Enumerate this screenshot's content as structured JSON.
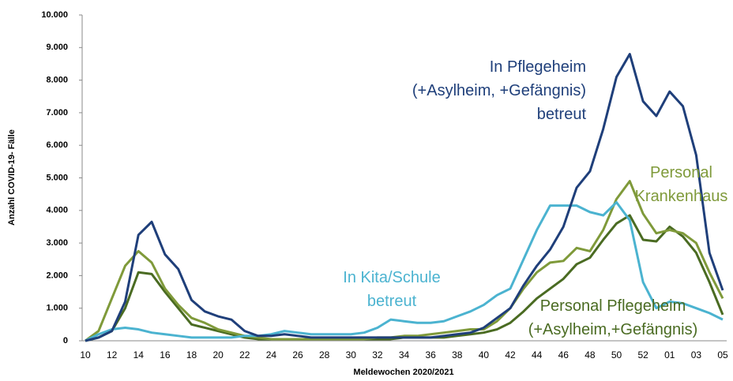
{
  "chart_data": {
    "type": "line",
    "x_label": "Meldewochen 2020/2021",
    "y_label": "Anzahl COVID-19- Fälle",
    "categories": [
      "10",
      null,
      "12",
      null,
      "14",
      null,
      "16",
      null,
      "18",
      null,
      "20",
      null,
      "22",
      null,
      "24",
      null,
      "26",
      null,
      "28",
      null,
      "30",
      null,
      "32",
      null,
      "34",
      null,
      "36",
      null,
      "38",
      null,
      "40",
      null,
      "42",
      null,
      "44",
      null,
      "46",
      null,
      "48",
      null,
      "50",
      null,
      "52",
      null,
      "01",
      null,
      "03",
      null,
      "05"
    ],
    "ylim": [
      0,
      10000
    ],
    "yticks": [
      0,
      {
        "value": 1000,
        "label": "1.000"
      },
      {
        "value": 2000,
        "label": "2.000"
      },
      {
        "value": 3000,
        "label": "3.000"
      },
      {
        "value": 4000,
        "label": "4.000"
      },
      {
        "value": 5000,
        "label": "5.000"
      },
      {
        "value": 6000,
        "label": "6.000"
      },
      {
        "value": 7000,
        "label": "7.000"
      },
      {
        "value": 8000,
        "label": "8.000"
      },
      {
        "value": 9000,
        "label": "9.000"
      },
      {
        "value": 10000,
        "label": "10.000"
      }
    ],
    "grid": false,
    "series": [
      {
        "name": "In Pflegeheim\n(+Asylheim, +Gefängnis)\nbetreut",
        "color": "#1f3f7a",
        "values": [
          0,
          100,
          300,
          1200,
          3250,
          3650,
          2650,
          2200,
          1250,
          900,
          750,
          650,
          300,
          150,
          150,
          200,
          150,
          100,
          100,
          100,
          100,
          100,
          100,
          100,
          100,
          100,
          100,
          150,
          200,
          250,
          400,
          700,
          1000,
          1700,
          2300,
          2800,
          3500,
          4700,
          5200,
          6500,
          8100,
          8800,
          7350,
          6900,
          7650,
          7200,
          5700,
          2700,
          1550
        ]
      },
      {
        "name": "Personal\nKrankenhaus",
        "color": "#7f9a3a",
        "values": [
          0,
          300,
          1300,
          2300,
          2750,
          2400,
          1600,
          1100,
          700,
          550,
          350,
          250,
          150,
          100,
          50,
          50,
          50,
          50,
          50,
          50,
          50,
          50,
          100,
          100,
          150,
          150,
          200,
          250,
          300,
          350,
          350,
          600,
          1000,
          1600,
          2100,
          2400,
          2450,
          2850,
          2750,
          3400,
          4350,
          4900,
          3900,
          3300,
          3400,
          3300,
          3000,
          2100,
          1300
        ]
      },
      {
        "name": "In Kita/Schule\nbetreut",
        "color": "#4bb3d0",
        "values": [
          0,
          200,
          350,
          400,
          350,
          250,
          200,
          150,
          100,
          100,
          100,
          100,
          150,
          150,
          200,
          300,
          250,
          200,
          200,
          200,
          200,
          250,
          400,
          650,
          600,
          550,
          550,
          600,
          750,
          900,
          1100,
          1400,
          1600,
          2500,
          3400,
          4150,
          4150,
          4150,
          3950,
          3850,
          4250,
          3700,
          1800,
          1000,
          1200,
          1150,
          1000,
          850,
          650
        ]
      },
      {
        "name": "Personal Pflegeheim\n(+Asylheim,+Gefängnis)",
        "color": "#4a6b22",
        "values": [
          0,
          100,
          300,
          1000,
          2100,
          2050,
          1500,
          1000,
          500,
          400,
          300,
          200,
          100,
          50,
          50,
          50,
          50,
          50,
          50,
          50,
          50,
          50,
          50,
          50,
          100,
          100,
          100,
          100,
          150,
          200,
          250,
          350,
          550,
          900,
          1300,
          1600,
          1900,
          2350,
          2550,
          3100,
          3600,
          3850,
          3100,
          3050,
          3500,
          3200,
          2700,
          1800,
          800
        ]
      }
    ]
  }
}
